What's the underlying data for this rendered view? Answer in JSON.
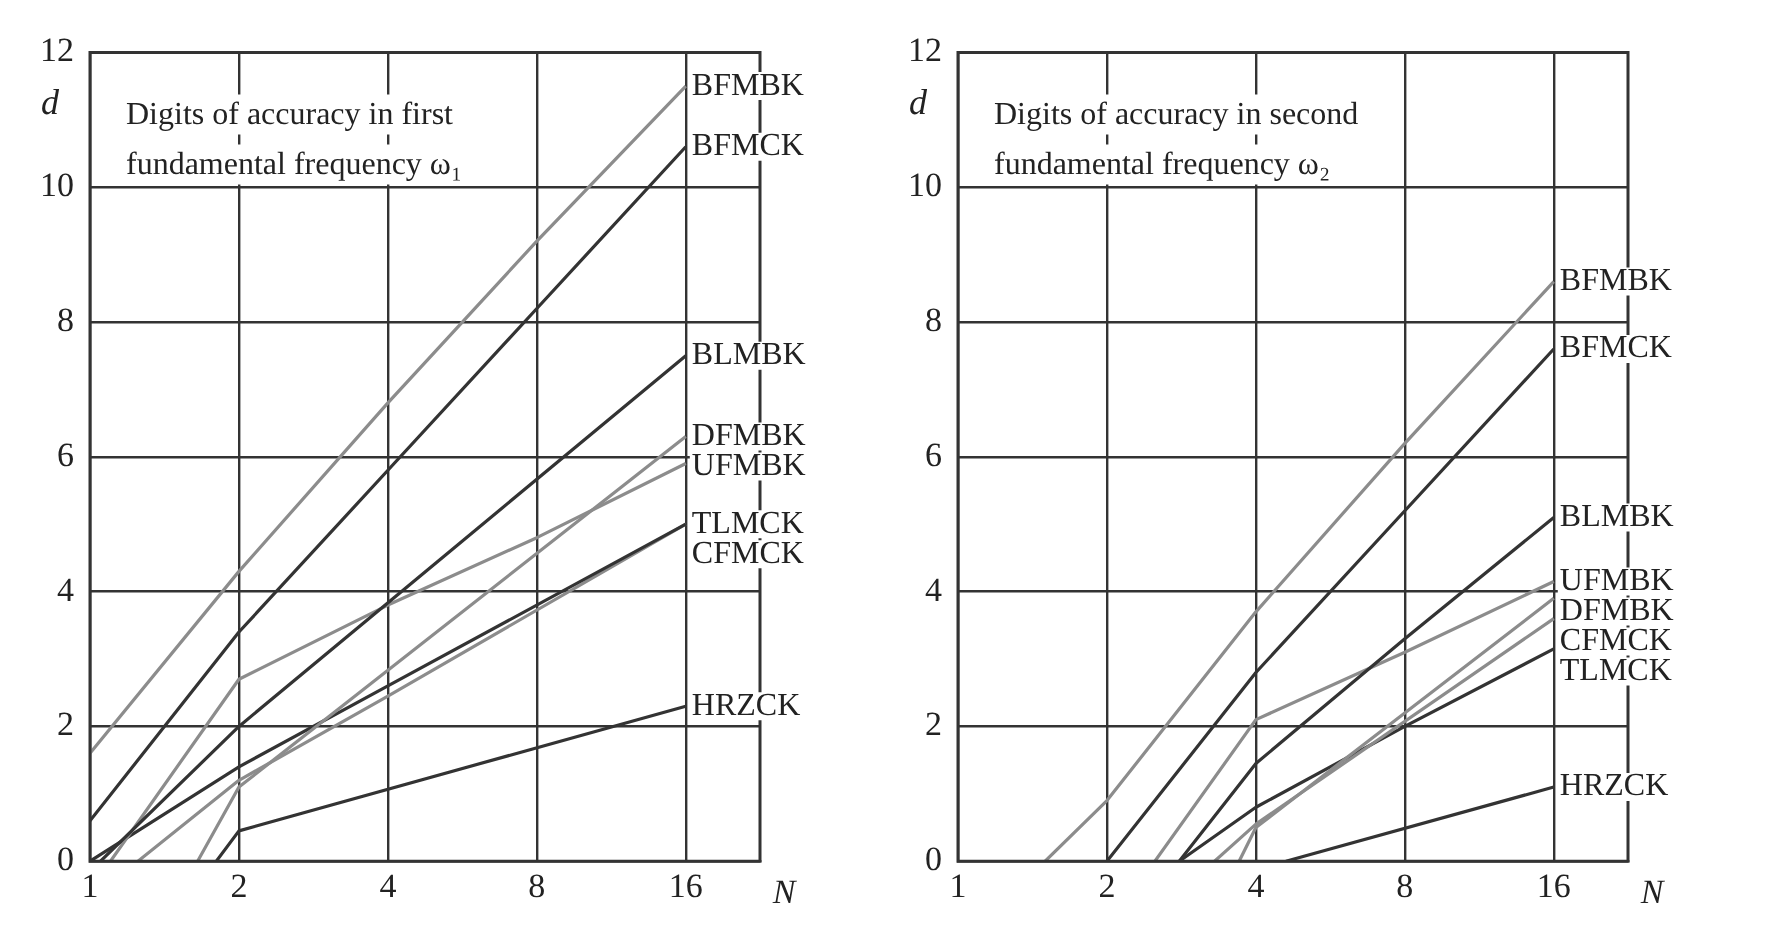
{
  "chart_data": [
    {
      "type": "line",
      "title": "Digits of accuracy in first fundamental frequency ω₁",
      "xlabel": "N",
      "ylabel": "d",
      "log": "x",
      "grid": true,
      "legend": false,
      "xlim": [
        1,
        22.6
      ],
      "xticks": [
        1,
        2,
        4,
        8,
        16
      ],
      "ylim": [
        0,
        12
      ],
      "yticks": [
        0,
        2,
        4,
        6,
        8,
        10,
        12
      ],
      "series": [
        {
          "name": "BFMBK",
          "color": "#8c8c8c",
          "x": [
            1,
            2,
            4,
            8,
            16
          ],
          "values": [
            1.6,
            4.3,
            6.8,
            9.2,
            11.5
          ]
        },
        {
          "name": "BFMCK",
          "color": "#333333",
          "x": [
            1,
            2,
            4,
            8,
            16
          ],
          "values": [
            0.6,
            3.4,
            5.8,
            8.2,
            10.6
          ]
        },
        {
          "name": "BLMBK",
          "color": "#333333",
          "x": [
            1.05,
            2,
            16
          ],
          "values": [
            0,
            2.0,
            7.5
          ]
        },
        {
          "name": "DFMBK",
          "color": "#8c8c8c",
          "x": [
            1.65,
            2,
            16
          ],
          "values": [
            0,
            1.1,
            6.3
          ]
        },
        {
          "name": "UFMBK",
          "color": "#8c8c8c",
          "x": [
            1.1,
            2,
            4,
            8,
            16
          ],
          "values": [
            0,
            2.7,
            3.8,
            4.8,
            5.9
          ]
        },
        {
          "name": "TLMCK",
          "color": "#333333",
          "x": [
            1,
            2,
            4,
            16
          ],
          "values": [
            0,
            1.4,
            2.6,
            5.0
          ]
        },
        {
          "name": "CFMCK",
          "color": "#8c8c8c",
          "x": [
            1.25,
            2,
            4,
            16
          ],
          "values": [
            0,
            1.2,
            2.45,
            5.0
          ]
        },
        {
          "name": "HRZCK",
          "color": "#333333",
          "x": [
            1.8,
            2,
            16
          ],
          "values": [
            0,
            0.45,
            2.3
          ]
        }
      ]
    },
    {
      "type": "line",
      "title": "Digits of accuracy in second fundamental frequency ω₂",
      "xlabel": "N",
      "ylabel": "d",
      "log": "x",
      "grid": true,
      "legend": false,
      "xlim": [
        1,
        22.6
      ],
      "xticks": [
        1,
        2,
        4,
        8,
        16
      ],
      "ylim": [
        0,
        12
      ],
      "yticks": [
        0,
        2,
        4,
        6,
        8,
        10,
        12
      ],
      "series": [
        {
          "name": "BFMBK",
          "color": "#8c8c8c",
          "x": [
            1.5,
            2,
            4,
            8,
            16
          ],
          "values": [
            0,
            0.9,
            3.7,
            6.2,
            8.6
          ]
        },
        {
          "name": "BFMCK",
          "color": "#333333",
          "x": [
            2,
            4,
            8,
            16
          ],
          "values": [
            0,
            2.8,
            5.2,
            7.6
          ]
        },
        {
          "name": "BLMBK",
          "color": "#333333",
          "x": [
            2.8,
            4,
            8,
            16
          ],
          "values": [
            0,
            1.45,
            3.3,
            5.1
          ]
        },
        {
          "name": "UFMBK",
          "color": "#8c8c8c",
          "x": [
            2.5,
            4,
            8,
            16
          ],
          "values": [
            0,
            2.1,
            3.1,
            4.15
          ]
        },
        {
          "name": "DFMBK",
          "color": "#8c8c8c",
          "x": [
            3.7,
            4,
            16
          ],
          "values": [
            0,
            0.5,
            3.9
          ]
        },
        {
          "name": "CFMCK",
          "color": "#8c8c8c",
          "x": [
            3.3,
            4,
            16
          ],
          "values": [
            0,
            0.55,
            3.6
          ]
        },
        {
          "name": "TLMCK",
          "color": "#333333",
          "x": [
            2.8,
            4,
            8,
            16
          ],
          "values": [
            0,
            0.8,
            2.0,
            3.15
          ]
        },
        {
          "name": "HRZCK",
          "color": "#333333",
          "x": [
            4.6,
            16
          ],
          "values": [
            0,
            1.1
          ]
        }
      ]
    }
  ]
}
